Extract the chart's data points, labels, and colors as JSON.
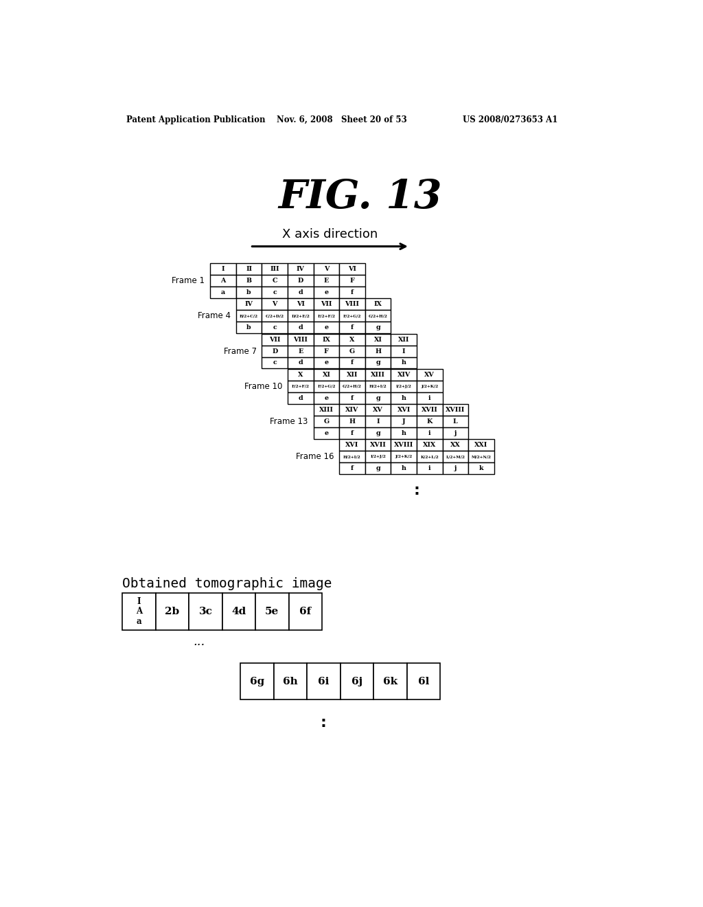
{
  "title": "FIG. 13",
  "header_left": "Patent Application Publication",
  "header_mid": "Nov. 6, 2008   Sheet 20 of 53",
  "header_right": "US 2008/0273653 A1",
  "x_axis_label": "X axis direction",
  "bg_color": "#ffffff",
  "frames": [
    {
      "label": "Frame 1",
      "rows": [
        [
          "I",
          "II",
          "III",
          "IV",
          "V",
          "VI"
        ],
        [
          "A",
          "B",
          "C",
          "D",
          "E",
          "F"
        ],
        [
          "a",
          "b",
          "c",
          "d",
          "e",
          "f"
        ]
      ],
      "formula_row": false
    },
    {
      "label": "Frame 4",
      "rows": [
        [
          "IV",
          "V",
          "VI",
          "VII",
          "VIII",
          "IX"
        ],
        [
          "B/2+C/2",
          "C/2+D/2",
          "D/2+E/2",
          "E/2+F/2",
          "F/2+G/2",
          "G/2+H/2"
        ],
        [
          "b",
          "c",
          "d",
          "e",
          "f",
          "g"
        ]
      ],
      "formula_row": true
    },
    {
      "label": "Frame 7",
      "rows": [
        [
          "VII",
          "VIII",
          "IX",
          "X",
          "XI",
          "XII"
        ],
        [
          "D",
          "E",
          "F",
          "G",
          "H",
          "I"
        ],
        [
          "c",
          "d",
          "e",
          "f",
          "g",
          "h"
        ]
      ],
      "formula_row": false
    },
    {
      "label": "Frame 10",
      "rows": [
        [
          "X",
          "XI",
          "XII",
          "XIII",
          "XIV",
          "XV"
        ],
        [
          "E/2+F/2",
          "F/2+G/2",
          "G/2+H/2",
          "H/2+I/2",
          "I/2+J/2",
          "J/2+K/2"
        ],
        [
          "d",
          "e",
          "f",
          "g",
          "h",
          "i"
        ]
      ],
      "formula_row": true
    },
    {
      "label": "Frame 13",
      "rows": [
        [
          "XIII",
          "XIV",
          "XV",
          "XVI",
          "XVII",
          "XVIII"
        ],
        [
          "G",
          "H",
          "I",
          "J",
          "K",
          "L"
        ],
        [
          "e",
          "f",
          "g",
          "h",
          "i",
          "j"
        ]
      ],
      "formula_row": false
    },
    {
      "label": "Frame 16",
      "rows": [
        [
          "XVI",
          "XVII",
          "XVIII",
          "XIX",
          "XX",
          "XXI"
        ],
        [
          "H/2+I/2",
          "I/2+J/2",
          "J/2+K/2",
          "K/2+L/2",
          "L/2+M/2",
          "M/2+N/2"
        ],
        [
          "f",
          "g",
          "h",
          "i",
          "j",
          "k"
        ]
      ],
      "formula_row": true
    }
  ],
  "obtained_label": "Obtained tomographic image",
  "bottom_row1": [
    "I\nA\na",
    "2b",
    "3c",
    "4d",
    "5e",
    "6f"
  ],
  "bottom_row2": [
    "6g",
    "6h",
    "6i",
    "6j",
    "6k",
    "6l"
  ]
}
